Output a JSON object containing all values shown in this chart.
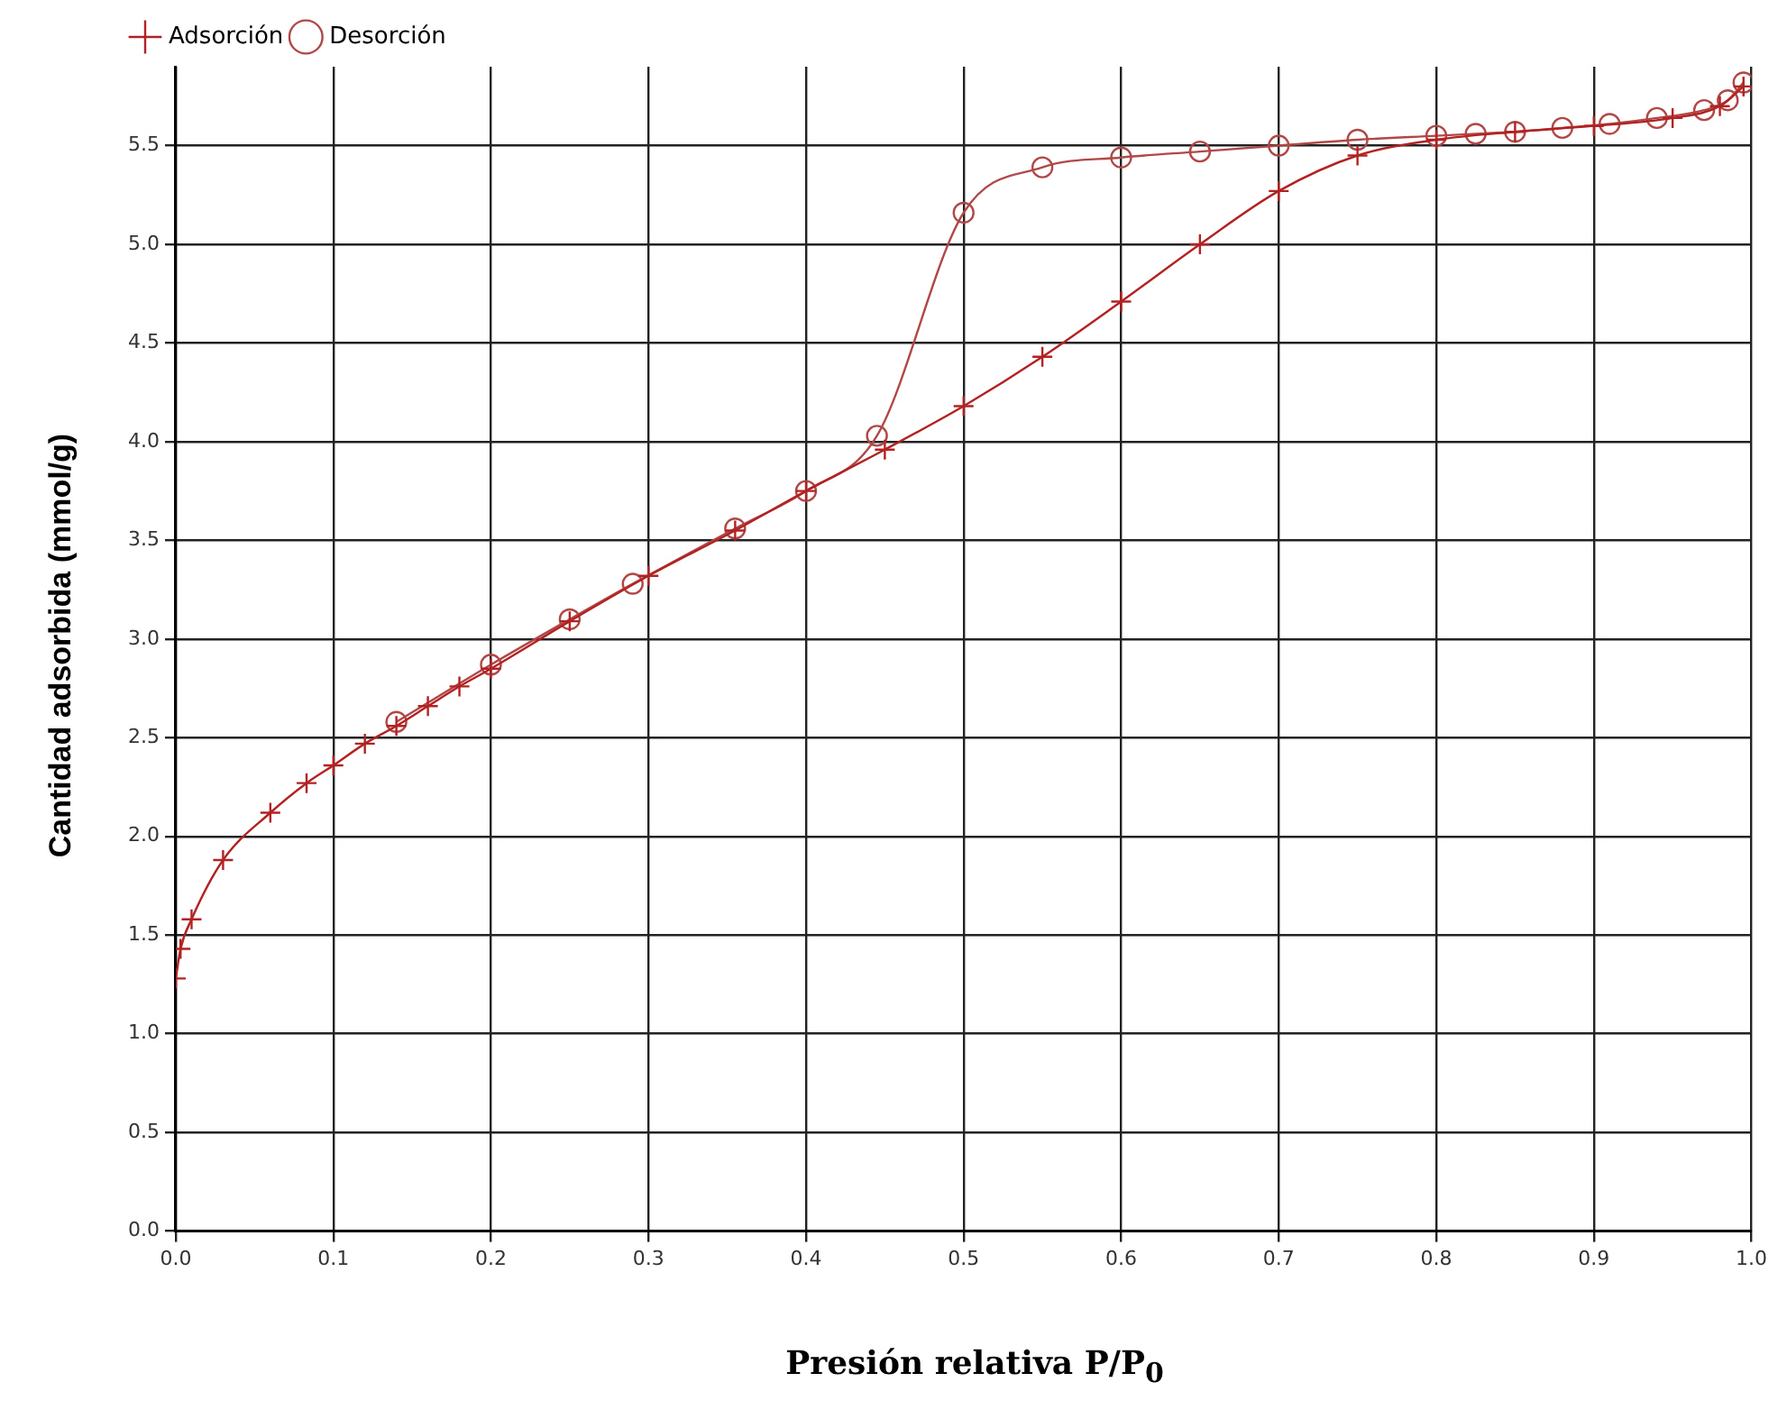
{
  "chart_data": {
    "type": "line",
    "xlabel": "Presión relativa P/P$_{0}$",
    "ylabel": "Cantidad adsorbida (mmol/g)",
    "xlim": [
      0,
      1
    ],
    "ylim": [
      0,
      5.9
    ],
    "xticks": [
      {
        "value": 0,
        "label": "0.0"
      },
      {
        "value": 0.1,
        "label": "0.1"
      },
      {
        "value": 0.2,
        "label": "0.2"
      },
      {
        "value": 0.3,
        "label": "0.3"
      },
      {
        "value": 0.4,
        "label": "0.4"
      },
      {
        "value": 0.5,
        "label": "0.5"
      },
      {
        "value": 0.6,
        "label": "0.6"
      },
      {
        "value": 0.7,
        "label": "0.7"
      },
      {
        "value": 0.8,
        "label": "0.8"
      },
      {
        "value": 0.9,
        "label": "0.9"
      },
      {
        "value": 1,
        "label": "1.0"
      }
    ],
    "yticks": [
      {
        "value": 0,
        "label": "0.0"
      },
      {
        "value": 0.5,
        "label": "0.5"
      },
      {
        "value": 1,
        "label": "1.0"
      },
      {
        "value": 1.5,
        "label": "1.5"
      },
      {
        "value": 2,
        "label": "2.0"
      },
      {
        "value": 2.5,
        "label": "2.5"
      },
      {
        "value": 3,
        "label": "3.0"
      },
      {
        "value": 3.5,
        "label": "3.5"
      },
      {
        "value": 4,
        "label": "4.0"
      },
      {
        "value": 4.5,
        "label": "4.5"
      },
      {
        "value": 5,
        "label": "5.0"
      },
      {
        "value": 5.5,
        "label": "5.5"
      }
    ],
    "grid": true,
    "legend": "top left",
    "line_style": "solid",
    "series": [
      {
        "name": "Adsorción",
        "color": "#b22222",
        "marker": "cross",
        "x": [
          0.0,
          0.003,
          0.01,
          0.03,
          0.06,
          0.083,
          0.1,
          0.12,
          0.14,
          0.16,
          0.18,
          0.2,
          0.25,
          0.3,
          0.355,
          0.4,
          0.45,
          0.5,
          0.55,
          0.6,
          0.65,
          0.7,
          0.75,
          0.8,
          0.85,
          0.9,
          0.95,
          0.98,
          0.995
        ],
        "values": [
          1.28,
          1.43,
          1.58,
          1.88,
          2.12,
          2.27,
          2.36,
          2.47,
          2.56,
          2.66,
          2.76,
          2.85,
          3.09,
          3.32,
          3.55,
          3.75,
          3.96,
          4.18,
          4.43,
          4.71,
          5.0,
          5.27,
          5.45,
          5.53,
          5.57,
          5.6,
          5.64,
          5.7,
          5.8
        ]
      },
      {
        "name": "Desorción",
        "color": "#b04848",
        "marker": "circle",
        "x": [
          0.995,
          0.985,
          0.97,
          0.94,
          0.91,
          0.88,
          0.85,
          0.825,
          0.8,
          0.75,
          0.7,
          0.65,
          0.6,
          0.55,
          0.5,
          0.445,
          0.4,
          0.355,
          0.29,
          0.25,
          0.2,
          0.14
        ],
        "values": [
          5.82,
          5.73,
          5.68,
          5.64,
          5.61,
          5.59,
          5.57,
          5.56,
          5.55,
          5.53,
          5.5,
          5.47,
          5.44,
          5.39,
          5.16,
          4.03,
          3.75,
          3.56,
          3.28,
          3.1,
          2.87,
          2.58
        ]
      }
    ]
  }
}
